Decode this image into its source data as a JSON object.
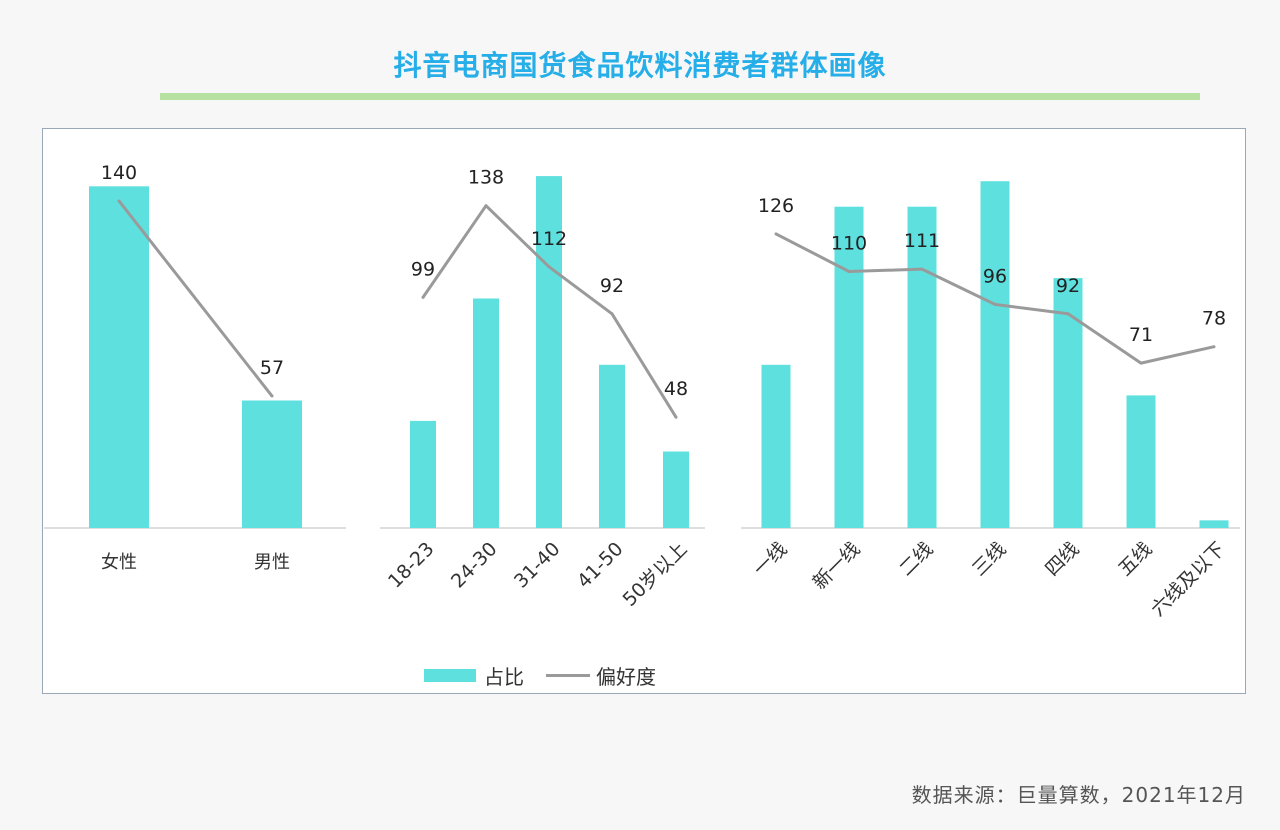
{
  "title": "抖音电商国货食品饮料消费者群体画像",
  "source": "数据来源：巨量算数，2021年12月",
  "legend": {
    "bar": "占比",
    "line": "偏好度"
  },
  "colors": {
    "bar": "#5ee0df",
    "line": "#9a9a9a",
    "title": "#25aee8",
    "rule": "#b7e1a1"
  },
  "chart_data": [
    {
      "type": "bar",
      "categories": [
        "女性",
        "男性"
      ],
      "series": [
        {
          "name": "占比",
          "values": [
            67,
            25
          ]
        },
        {
          "name": "偏好度",
          "values": [
            140,
            57
          ]
        }
      ],
      "data_labels": [
        "140",
        "57"
      ]
    },
    {
      "type": "bar",
      "categories": [
        "18-23",
        "24-30",
        "31-40",
        "41-50",
        "50岁以上"
      ],
      "series": [
        {
          "name": "占比",
          "values": [
            21,
            45,
            69,
            32,
            15
          ]
        },
        {
          "name": "偏好度",
          "values": [
            99,
            138,
            112,
            92,
            48
          ]
        }
      ],
      "data_labels": [
        "99",
        "138",
        "112",
        "92",
        "48"
      ]
    },
    {
      "type": "bar",
      "categories": [
        "一线",
        "新一线",
        "二线",
        "三线",
        "四线",
        "五线",
        "六线及以下"
      ],
      "series": [
        {
          "name": "占比",
          "values": [
            32,
            63,
            63,
            68,
            49,
            26,
            1.5
          ]
        },
        {
          "name": "偏好度",
          "values": [
            126,
            110,
            111,
            96,
            92,
            71,
            78
          ]
        }
      ],
      "data_labels": [
        "126",
        "110",
        "111",
        "96",
        "92",
        "71",
        "78"
      ]
    }
  ]
}
